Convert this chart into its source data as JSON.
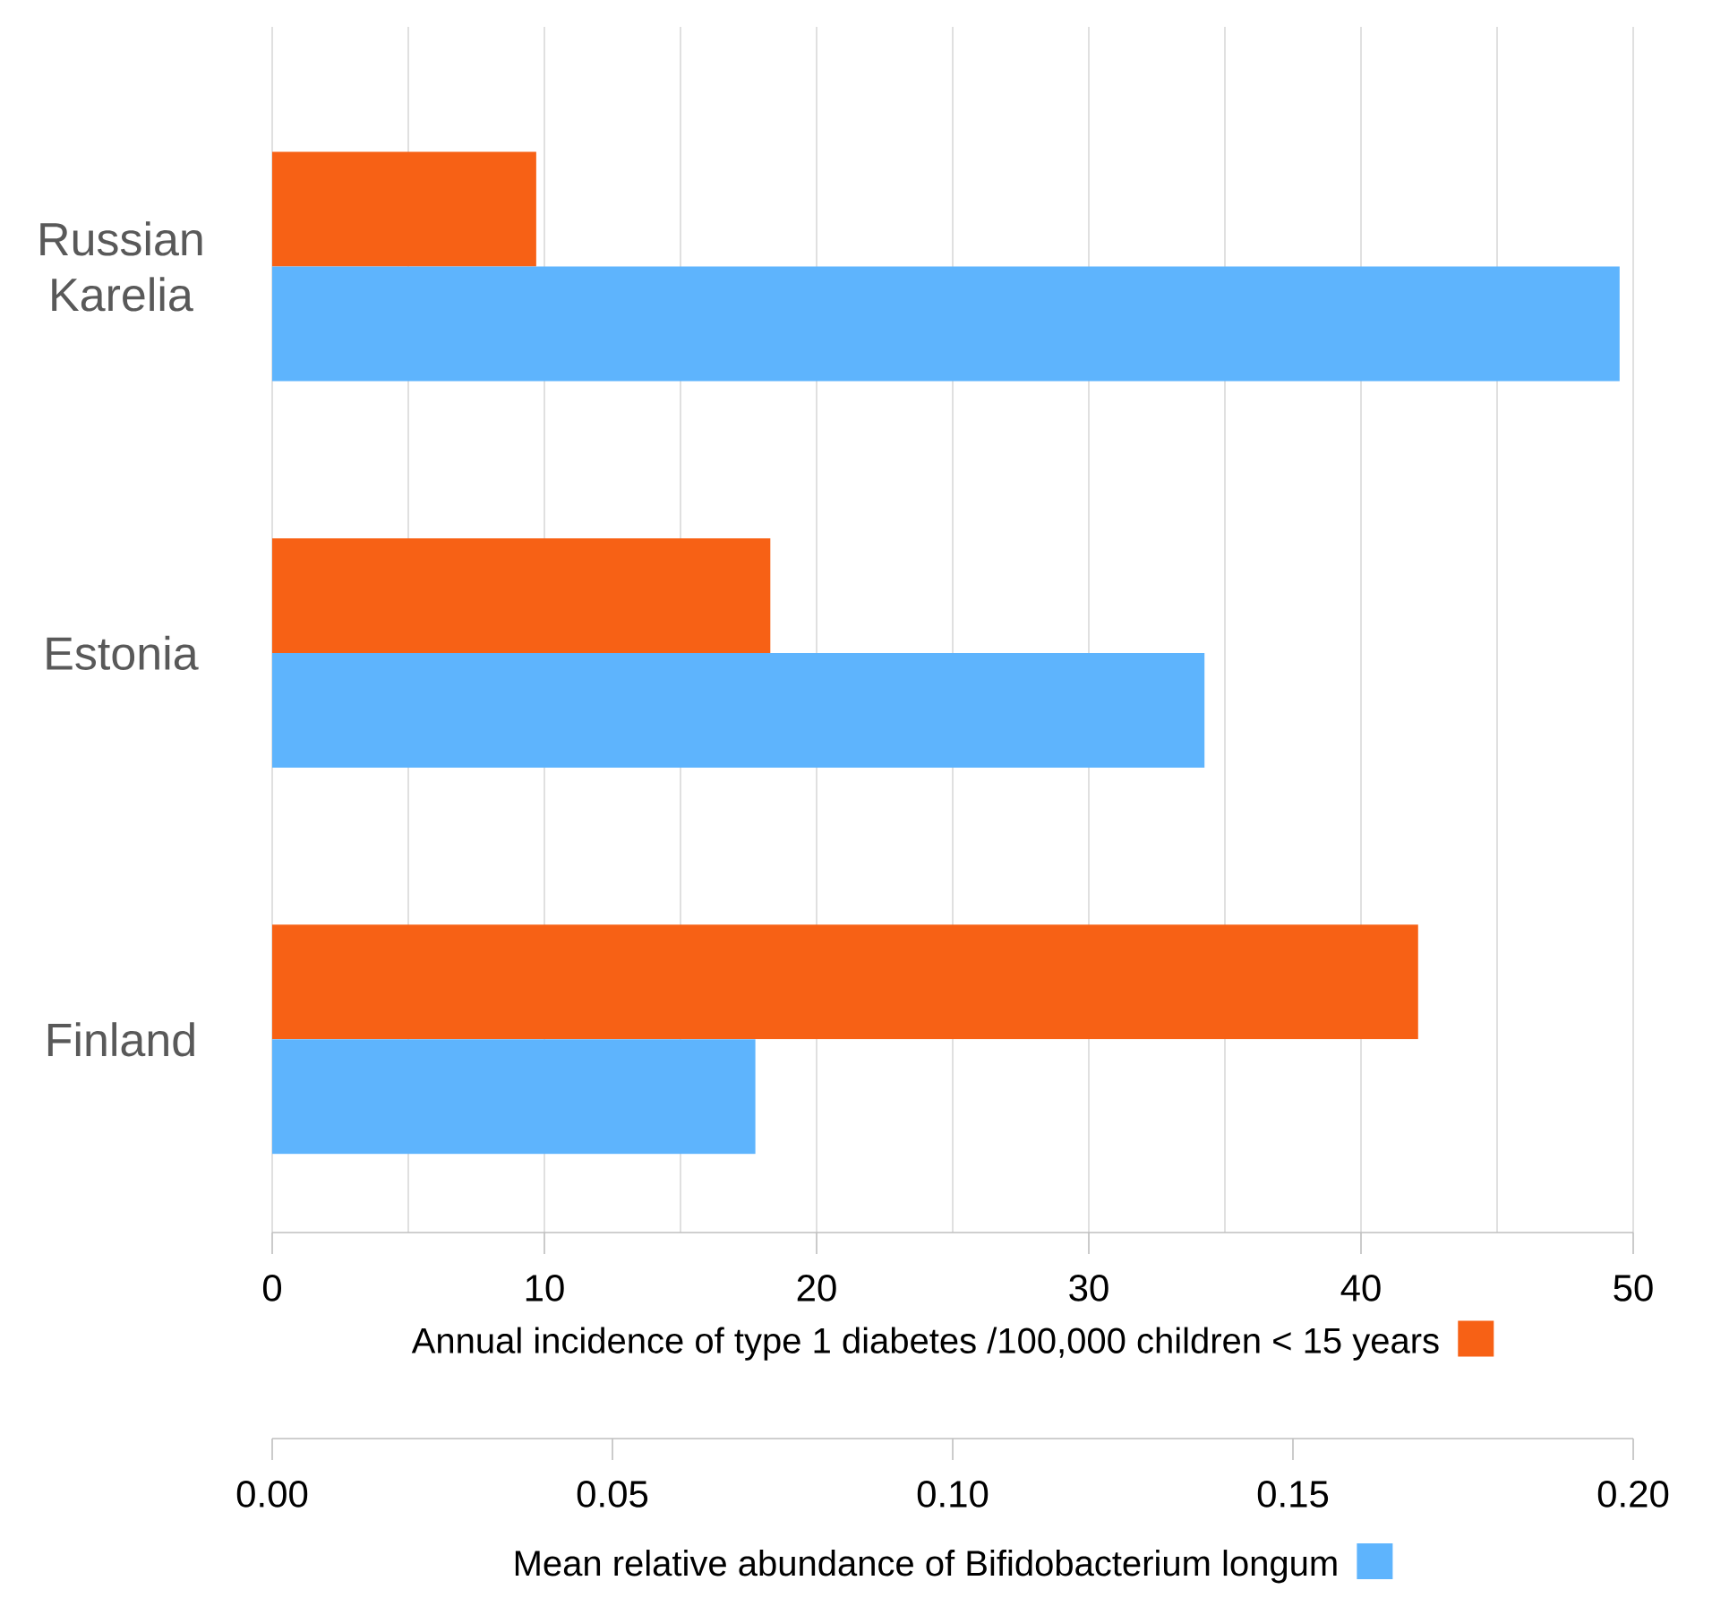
{
  "chart_data": {
    "type": "bar",
    "orientation": "horizontal",
    "categories": [
      "Russian Karelia",
      "Estonia",
      "Finland"
    ],
    "series": [
      {
        "color": "#f76115",
        "values": [
          9.7,
          18.3,
          42.1
        ]
      },
      {
        "color": "#5eb4fd",
        "axis": "x2",
        "values": [
          0.198,
          0.137,
          0.071
        ]
      }
    ],
    "xlabel": "Annual incidence of type 1 diabetes /100,000 children < 15 years",
    "xlim": [
      0,
      50
    ],
    "xticks": [
      0,
      10,
      20,
      30,
      40,
      50
    ],
    "x2label": "Mean relative abundance of Bifidobacterium longum",
    "x2lim": [
      0,
      0.2
    ],
    "x2ticks": [
      {
        "value": 0,
        "label": "0.00"
      },
      {
        "value": 0.05,
        "label": "0.05"
      },
      {
        "value": 0.1,
        "label": "0.10"
      },
      {
        "value": 0.15,
        "label": "0.15"
      },
      {
        "value": 0.2,
        "label": "0.20"
      }
    ],
    "grid": true
  }
}
